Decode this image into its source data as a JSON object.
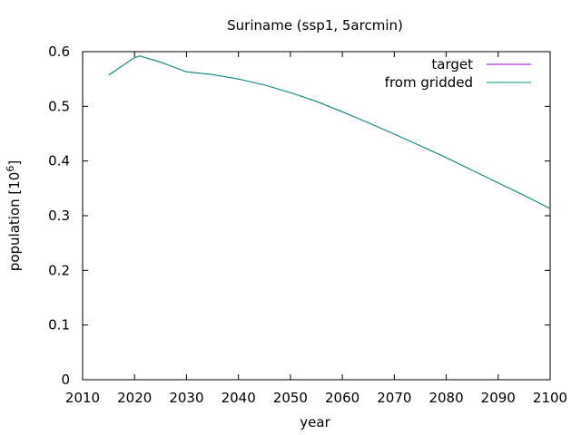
{
  "chart_data": {
    "type": "line",
    "title": "Suriname (ssp1, 5arcmin)",
    "xlabel": "year",
    "ylabel": "population [10",
    "ylabel_exponent": "6",
    "ylabel_suffix": "]",
    "xlim": [
      2010,
      2100
    ],
    "ylim": [
      0,
      0.6
    ],
    "xticks": [
      2010,
      2020,
      2030,
      2040,
      2050,
      2060,
      2070,
      2080,
      2090,
      2100
    ],
    "xtick_labels": [
      "2010",
      "2020",
      "2030",
      "2040",
      "2050",
      "2060",
      "2070",
      "2080",
      "2090",
      "2100"
    ],
    "yticks": [
      0,
      0.1,
      0.2,
      0.3,
      0.4,
      0.5,
      0.6
    ],
    "ytick_labels": [
      "0",
      "0.1",
      "0.2",
      "0.3",
      "0.4",
      "0.5",
      "0.6"
    ],
    "grid": false,
    "legend_position": "top-right",
    "x": [
      2015,
      2020,
      2021,
      2025,
      2030,
      2035,
      2040,
      2045,
      2050,
      2055,
      2060,
      2065,
      2070,
      2075,
      2080,
      2085,
      2090,
      2095,
      2100
    ],
    "series": [
      {
        "name": "target",
        "color": "#9400d3",
        "values": [
          0.557,
          0.589,
          0.592,
          0.581,
          0.563,
          0.558,
          0.55,
          0.539,
          0.525,
          0.509,
          0.49,
          0.47,
          0.449,
          0.428,
          0.406,
          0.383,
          0.36,
          0.337,
          0.313
        ]
      },
      {
        "name": "from gridded",
        "color": "#009e73",
        "values": [
          0.557,
          0.589,
          0.592,
          0.581,
          0.563,
          0.558,
          0.55,
          0.539,
          0.525,
          0.509,
          0.49,
          0.47,
          0.449,
          0.428,
          0.406,
          0.383,
          0.36,
          0.337,
          0.313
        ]
      }
    ]
  }
}
